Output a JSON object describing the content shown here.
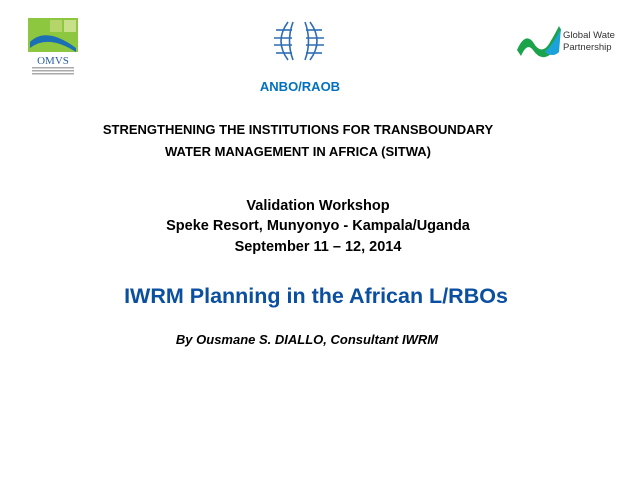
{
  "logos": {
    "left": "OMVS",
    "center": "ANBO",
    "right": "Global Water Partnership"
  },
  "org": "ANBO/RAOB",
  "project": {
    "line1": "STRENGTHENING THE INSTITUTIONS FOR TRANSBOUNDARY",
    "line2": "WATER MANAGEMENT IN AFRICA  (SITWA)"
  },
  "event": {
    "name": "Validation Workshop",
    "location": "Speke Resort, Munyonyo - Kampala/Uganda",
    "date": "September 11 – 12, 2014"
  },
  "title": "IWRM Planning in the African L/RBOs",
  "author": "By Ousmane S. DIALLO, Consultant IWRM",
  "colors": {
    "accent": "#0070C0",
    "title": "#0B4FA0"
  }
}
